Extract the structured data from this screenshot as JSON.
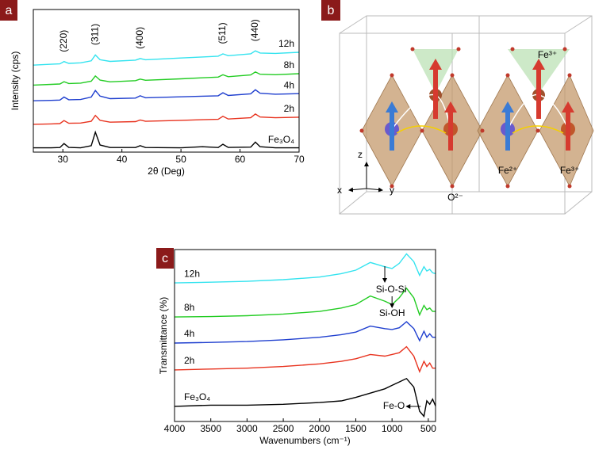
{
  "chart_data": [
    {
      "type": "line",
      "panel": "a",
      "xlabel": "2θ (Deg)",
      "ylabel": "Intensity (cps)",
      "xlim": [
        25,
        70
      ],
      "xticks": [
        30,
        40,
        50,
        60,
        70
      ],
      "ylim": [
        0,
        100
      ],
      "grid": false,
      "x": [
        25,
        28,
        29.5,
        30.2,
        31,
        33,
        34.8,
        35.5,
        36.3,
        38,
        42.3,
        43.1,
        44,
        50,
        53.6,
        56.3,
        57.1,
        58,
        61.8,
        62.6,
        63.4,
        66,
        70
      ],
      "series": [
        {
          "name": "12h",
          "color": "#33e3ef",
          "values": [
            61,
            61.6,
            61.9,
            63.5,
            62.2,
            62.6,
            64,
            68.1,
            64.8,
            63.6,
            64.5,
            65.6,
            64.8,
            66,
            66.7,
            67.3,
            68.9,
            67.6,
            68.9,
            71,
            69.5,
            69.2,
            70
          ]
        },
        {
          "name": "8h",
          "color": "#22cc22",
          "values": [
            47,
            47.5,
            47.8,
            49.4,
            48.1,
            48.4,
            49.7,
            53.4,
            50.5,
            49.3,
            50.1,
            51.2,
            50.4,
            51.4,
            52.1,
            52.6,
            54.2,
            52.9,
            54.1,
            56.2,
            54.6,
            54.3,
            55
          ]
        },
        {
          "name": "4h",
          "color": "#1f3fcf",
          "values": [
            36,
            36.3,
            36.5,
            38.6,
            36.7,
            36.9,
            38.6,
            43.2,
            39.3,
            37.5,
            37.9,
            39.5,
            38.1,
            38.8,
            39.2,
            39.5,
            41.6,
            39.7,
            40.9,
            43.7,
            41.3,
            40.6,
            41
          ]
        },
        {
          "name": "2h",
          "color": "#e8331f",
          "values": [
            19.5,
            19.8,
            20,
            22.1,
            20.2,
            20.4,
            21.6,
            25.7,
            22.3,
            21,
            21.4,
            22.5,
            21.6,
            22.3,
            22.7,
            23,
            25.1,
            23.2,
            24.1,
            26.7,
            24.6,
            24.1,
            24.5
          ]
        },
        {
          "name": "Fe₃O₄",
          "color": "#000000",
          "values": [
            3,
            3,
            3.2,
            6,
            3.3,
            3,
            4.5,
            14,
            5,
            3.2,
            3.2,
            4.5,
            3.2,
            3,
            3.8,
            3.2,
            5.5,
            3.3,
            3.5,
            7,
            3.8,
            3,
            3
          ]
        }
      ],
      "annotations": [
        {
          "text": "(220)",
          "x": 30.2
        },
        {
          "text": "(311)",
          "x": 35.5
        },
        {
          "text": "(400)",
          "x": 43.1
        },
        {
          "text": "(511)",
          "x": 57.1
        },
        {
          "text": "(440)",
          "x": 62.6
        }
      ]
    },
    {
      "type": "line",
      "panel": "c",
      "xlabel": "Wavenumbers (cm⁻¹)",
      "ylabel": "Transmittance (%)",
      "xlim": [
        4000,
        400
      ],
      "xticks": [
        4000,
        3500,
        3000,
        2500,
        2000,
        1500,
        1000,
        500
      ],
      "ylim": [
        0,
        100
      ],
      "grid": false,
      "x": [
        4000,
        3500,
        3000,
        2500,
        2000,
        1700,
        1500,
        1300,
        1100,
        1000,
        900,
        800,
        700,
        620,
        560,
        520,
        480,
        440,
        400
      ],
      "series": [
        {
          "name": "12h",
          "color": "#33e3ef",
          "values": [
            80.6,
            81,
            81.5,
            82.5,
            84,
            86,
            88,
            92.5,
            90,
            89,
            92,
            97.5,
            93,
            85,
            90,
            87.5,
            88.5,
            86.5,
            86
          ]
        },
        {
          "name": "8h",
          "color": "#22cc22",
          "values": [
            60.8,
            61,
            61.5,
            62.5,
            64,
            66,
            68,
            73,
            70,
            68,
            72,
            77.5,
            72,
            62,
            67.5,
            65,
            66,
            64,
            64
          ]
        },
        {
          "name": "4h",
          "color": "#1f3fcf",
          "values": [
            45.6,
            46,
            46.5,
            47.5,
            49,
            50.5,
            52,
            55.5,
            54,
            53.5,
            54.5,
            58,
            54,
            47,
            52.5,
            49,
            51,
            49,
            49
          ]
        },
        {
          "name": "2h",
          "color": "#e8331f",
          "values": [
            30,
            30.5,
            31,
            32,
            33.5,
            35,
            36.5,
            39,
            38,
            39,
            40,
            43.5,
            38,
            29,
            35,
            32,
            34,
            31,
            31
          ]
        },
        {
          "name": "Fe₃O₄",
          "color": "#000000",
          "values": [
            8.8,
            9.5,
            9.5,
            10,
            11,
            12,
            14,
            16.5,
            19,
            21,
            23,
            25,
            20,
            6,
            3,
            12,
            10,
            13,
            9
          ]
        }
      ],
      "annotations": [
        {
          "text": "Si-O-Si",
          "x": 1100
        },
        {
          "text": "Si-OH",
          "x": 1000
        },
        {
          "text": "Fe-O",
          "x": 780
        }
      ]
    }
  ],
  "diagram": {
    "panel": "b",
    "labels": [
      {
        "text": "Fe³⁺"
      },
      {
        "text": "Fe²⁺"
      },
      {
        "text": "Fe³⁺"
      },
      {
        "text": "O²⁻"
      },
      {
        "text": "z"
      },
      {
        "text": "x"
      },
      {
        "text": "y"
      }
    ]
  }
}
